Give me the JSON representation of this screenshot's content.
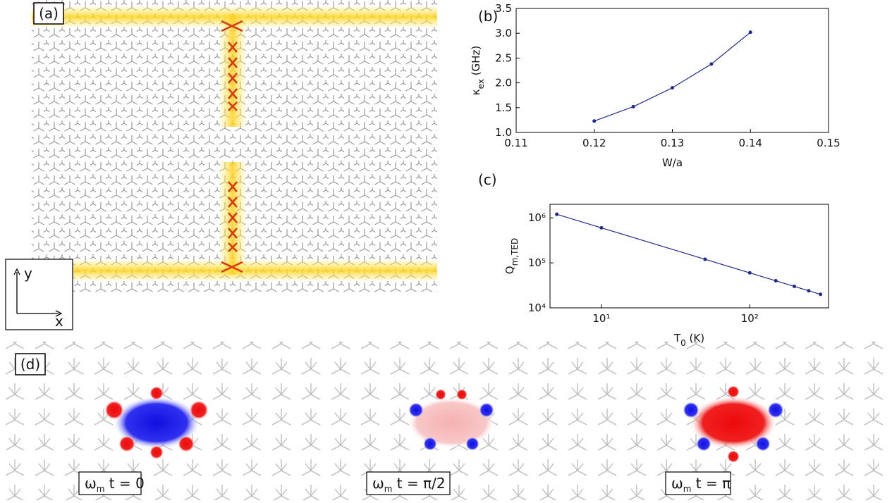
{
  "panel_labels": [
    "(a)",
    "(b)",
    "(c)",
    "(d)"
  ],
  "axes_labels": {
    "y": "y",
    "x": "x"
  },
  "phase_labels": [
    {
      "main": "ω",
      "sub": "m",
      "rest": " t = 0"
    },
    {
      "main": "ω",
      "sub": "m",
      "rest": " t = π/2"
    },
    {
      "main": "ω",
      "sub": "m",
      "rest": " t = π"
    }
  ],
  "chart_data": [
    {
      "type": "line",
      "color": "#1f2a8a",
      "x": [
        0.12,
        0.125,
        0.13,
        0.135,
        0.14
      ],
      "values": [
        1.23,
        1.52,
        1.9,
        2.38,
        3.02
      ],
      "xlim": [
        0.11,
        0.15
      ],
      "xticks": [
        0.11,
        0.12,
        0.13,
        0.14,
        0.15
      ],
      "ylim": [
        1,
        3.5
      ],
      "yticks": [
        {
          "value": 1,
          "label": "1.0"
        },
        {
          "value": 1.5,
          "label": "1.5"
        },
        {
          "value": 2,
          "label": "2.0"
        },
        {
          "value": 2.5,
          "label": "2.5"
        },
        {
          "value": 3,
          "label": "3.0"
        },
        {
          "value": 3.5,
          "label": "3.5"
        }
      ],
      "xlabel": {
        "main": "W/a"
      },
      "ylabel": {
        "main": "κ",
        "sub": "ex",
        "rest": " (GHz)"
      }
    },
    {
      "type": "line",
      "color": "#1f2a8a",
      "xscale": "log",
      "yscale": "log",
      "x": [
        5,
        10,
        50,
        100,
        150,
        200,
        250,
        300
      ],
      "values": [
        1200000,
        600000,
        120000,
        60000,
        40000,
        30000,
        24000,
        20000
      ],
      "xlim": [
        4.5,
        340
      ],
      "xticks": [
        {
          "value": 10,
          "label": "10¹"
        },
        {
          "value": 100,
          "label": "10²"
        }
      ],
      "ylim": [
        10000,
        2000000
      ],
      "yticks": [
        {
          "value": 10000,
          "label": "10⁴"
        },
        {
          "value": 100000,
          "label": "10⁵"
        },
        {
          "value": 1000000,
          "label": "10⁶"
        }
      ],
      "xlabel": {
        "main": "T",
        "sub": "0",
        "rest": " (K)"
      },
      "ylabel": {
        "main": "Q",
        "sub": "m,TED"
      }
    }
  ]
}
